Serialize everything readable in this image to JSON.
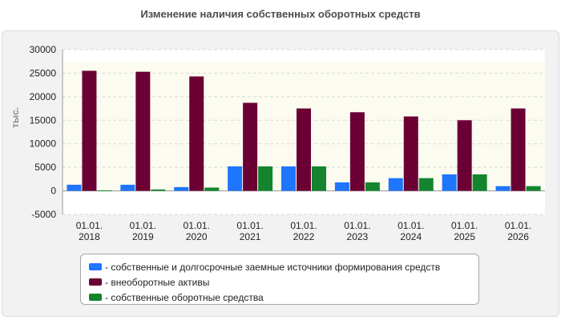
{
  "chart_data": {
    "type": "bar",
    "title": "Изменение наличия собственных оборотных средств",
    "ylabel": "тыс.",
    "xlabel": "",
    "ylim": [
      -5000,
      30000
    ],
    "yticks": [
      -5000,
      0,
      5000,
      10000,
      15000,
      20000,
      25000,
      30000
    ],
    "grid": true,
    "legend_position": "bottom",
    "categories": [
      [
        "01.01.",
        "2018"
      ],
      [
        "01.01.",
        "2019"
      ],
      [
        "01.01.",
        "2020"
      ],
      [
        "01.01.",
        "2021"
      ],
      [
        "01.01.",
        "2022"
      ],
      [
        "01.01.",
        "2023"
      ],
      [
        "01.01.",
        "2024"
      ],
      [
        "01.01.",
        "2025"
      ],
      [
        "01.01.",
        "2026"
      ]
    ],
    "series": [
      {
        "name": "- собственные и долгосрочные заемные источники формирования средств",
        "color": "#1f75fe",
        "values": [
          1300,
          1300,
          800,
          5200,
          5200,
          1800,
          2700,
          3500,
          1000
        ]
      },
      {
        "name": "- внеоборотные активы",
        "color": "#6b0035",
        "values": [
          25500,
          25300,
          24300,
          18700,
          17500,
          16700,
          15800,
          15000,
          17500
        ]
      },
      {
        "name": "- собственные оборотные средства",
        "color": "#14852e",
        "values": [
          100,
          300,
          700,
          5200,
          5200,
          1800,
          2700,
          3500,
          1000
        ]
      }
    ]
  }
}
